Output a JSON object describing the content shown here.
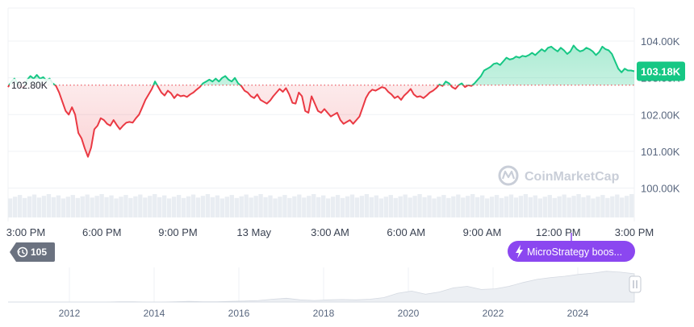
{
  "chart_data": {
    "type": "line",
    "y_ticks": [
      "104.00K",
      "103.00K",
      "102.00K",
      "101.00K",
      "100.00K"
    ],
    "y_tick_values": [
      104.0,
      103.0,
      102.0,
      101.0,
      100.0
    ],
    "ylim": [
      99.2,
      104.9
    ],
    "x_labels": [
      "3:00 PM",
      "6:00 PM",
      "9:00 PM",
      "13 May",
      "3:00 AM",
      "6:00 AM",
      "9:00 AM",
      "12:00 PM",
      "3:00 PM"
    ],
    "reference_value": 102.8,
    "reference_label": "102.80K",
    "current_value": 103.18,
    "current_label": "103.18K",
    "grid": true,
    "series": [
      {
        "values": [
          102.75,
          102.9,
          102.98,
          102.85,
          102.75,
          102.75,
          102.95,
          103.05,
          102.98,
          103.08,
          102.98,
          103.02,
          102.93,
          102.98,
          102.85,
          102.78,
          102.6,
          102.35,
          102.1,
          102.0,
          102.2,
          102.0,
          101.5,
          101.35,
          101.08,
          100.85,
          101.1,
          101.6,
          101.7,
          101.9,
          101.85,
          101.75,
          101.7,
          101.85,
          101.72,
          101.6,
          101.7,
          101.78,
          101.8,
          101.78,
          101.9,
          102.0,
          102.2,
          102.4,
          102.55,
          102.7,
          102.9,
          102.75,
          102.6,
          102.52,
          102.65,
          102.58,
          102.45,
          102.55,
          102.5,
          102.52,
          102.48,
          102.55,
          102.6,
          102.68,
          102.75,
          102.85,
          102.9,
          102.95,
          102.9,
          102.98,
          102.9,
          103.0,
          103.05,
          102.95,
          102.9,
          103.0,
          102.85,
          102.78,
          102.65,
          102.6,
          102.5,
          102.45,
          102.55,
          102.4,
          102.35,
          102.3,
          102.38,
          102.5,
          102.6,
          102.7,
          102.62,
          102.72,
          102.55,
          102.32,
          102.3,
          102.6,
          102.5,
          102.1,
          102.05,
          102.5,
          102.3,
          102.1,
          102.05,
          102.15,
          102.05,
          101.95,
          102.0,
          102.05,
          101.85,
          101.75,
          101.8,
          101.85,
          101.75,
          101.85,
          101.95,
          102.2,
          102.45,
          102.6,
          102.68,
          102.65,
          102.7,
          102.75,
          102.72,
          102.62,
          102.55,
          102.45,
          102.5,
          102.4,
          102.52,
          102.6,
          102.7,
          102.55,
          102.48,
          102.5,
          102.45,
          102.52,
          102.6,
          102.65,
          102.72,
          102.82,
          102.78,
          102.9,
          102.85,
          102.75,
          102.7,
          102.8,
          102.85,
          102.75,
          102.8,
          102.78,
          102.85,
          102.95,
          103.05,
          103.2,
          103.25,
          103.3,
          103.38,
          103.4,
          103.35,
          103.45,
          103.55,
          103.5,
          103.52,
          103.58,
          103.55,
          103.6,
          103.58,
          103.62,
          103.68,
          103.62,
          103.7,
          103.78,
          103.72,
          103.82,
          103.85,
          103.78,
          103.72,
          103.82,
          103.75,
          103.65,
          103.72,
          103.88,
          103.78,
          103.72,
          103.75,
          103.82,
          103.78,
          103.72,
          103.62,
          103.7,
          103.85,
          103.78,
          103.75,
          103.65,
          103.45,
          103.25,
          103.15,
          103.25,
          103.2,
          103.2,
          103.18
        ]
      }
    ],
    "volume_relative": 0.82,
    "navigator": {
      "years": [
        "2012",
        "2014",
        "2016",
        "2018",
        "2020",
        "2022",
        "2024"
      ],
      "history_values": [
        0.0,
        0.0,
        0.0,
        0.0,
        0.0,
        0.0,
        0.0,
        0.0,
        0.01,
        0.01,
        0.0,
        0.0,
        0.01,
        0.02,
        0.01,
        0.01,
        0.02,
        0.03,
        0.05,
        0.09,
        0.12,
        0.07,
        0.05,
        0.07,
        0.08,
        0.07,
        0.09,
        0.14,
        0.28,
        0.35,
        0.25,
        0.32,
        0.45,
        0.5,
        0.4,
        0.42,
        0.5,
        0.62,
        0.72,
        0.78,
        0.82,
        0.88,
        0.92,
        0.98,
        0.95,
        0.9
      ]
    }
  },
  "badges": {
    "history_count": "105",
    "event_label": "MicroStrategy boos..."
  },
  "watermark": "CoinMarketCap",
  "colors": {
    "up": "#16c784",
    "down": "#ea3943",
    "event": "#8b47f0",
    "badge": "#6b7280",
    "grid": "#eff2f5"
  },
  "icons": {
    "history": "history-icon",
    "event": "lightning-icon",
    "watermark_logo": "coinmarketcap-logo-icon",
    "handle": "drag-handle-icon"
  }
}
